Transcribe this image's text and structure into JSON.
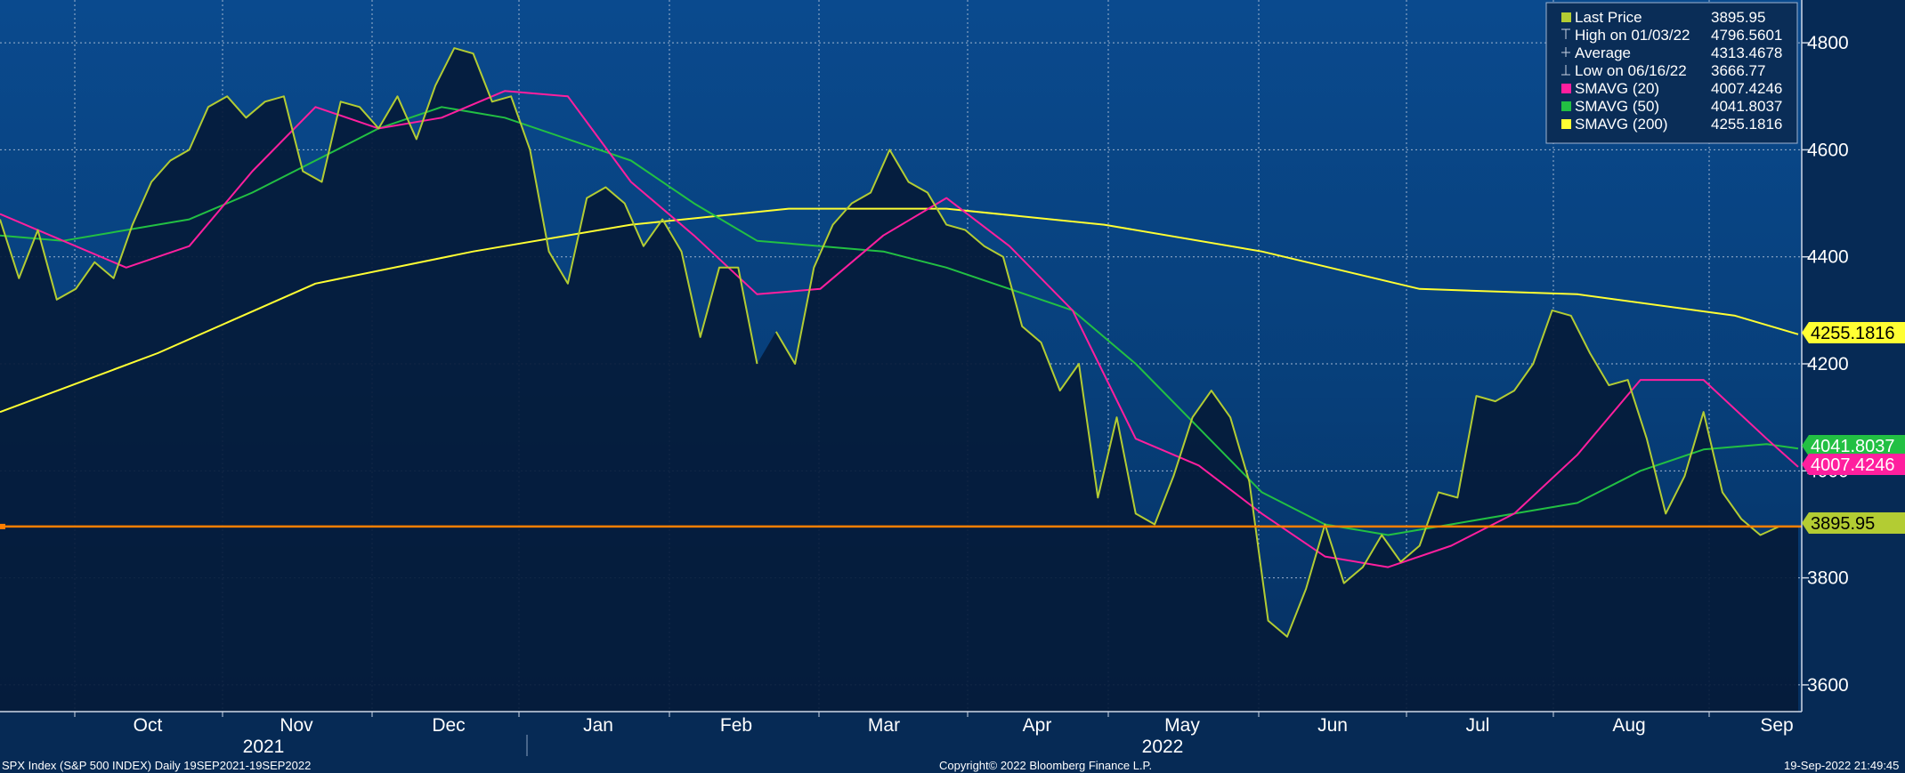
{
  "chart_data": {
    "type": "line",
    "title": "",
    "xlabel": "",
    "ylabel": "",
    "ylim": [
      3550,
      4880
    ],
    "x_months": [
      "Oct",
      "Nov",
      "Dec",
      "Jan",
      "Feb",
      "Mar",
      "Apr",
      "May",
      "Jun",
      "Jul",
      "Aug",
      "Sep"
    ],
    "x_years": [
      "2021",
      "2022"
    ],
    "y_ticks": [
      "4800",
      "4600",
      "4400",
      "4200",
      "4000",
      "3800",
      "3600"
    ],
    "y_tick_values": [
      4800,
      4600,
      4400,
      4200,
      4000,
      3800,
      3600
    ],
    "grid": true,
    "legend_position": "top-right",
    "reference_line": {
      "value": 3895.95,
      "color": "#ff7f00"
    },
    "legend": [
      {
        "label": "Last Price",
        "value": "3895.95",
        "color": "#b3cc33",
        "marker": "square"
      },
      {
        "label": "High on 01/03/22",
        "value": "4796.5601",
        "color": "#ffffff",
        "marker": "high"
      },
      {
        "label": "Average",
        "value": "4313.4678",
        "color": "#ffffff",
        "marker": "avg"
      },
      {
        "label": "Low on 06/16/22",
        "value": "3666.77",
        "color": "#ffffff",
        "marker": "low"
      },
      {
        "label": "SMAVG (20)",
        "value": "4007.4246",
        "color": "#ff1f9e",
        "marker": "square"
      },
      {
        "label": "SMAVG (50)",
        "value": "4041.8037",
        "color": "#22c043",
        "marker": "square"
      },
      {
        "label": "SMAVG (200)",
        "value": "4255.1816",
        "color": "#ffff33",
        "marker": "square"
      }
    ],
    "right_tags": [
      {
        "label": "4255.1816",
        "value": 4255.18,
        "bg": "#ffff33",
        "fg": "#000000"
      },
      {
        "label": "4041.8037",
        "value": 4041.8,
        "bg": "#22c043",
        "fg": "#ffffff"
      },
      {
        "label": "4007.4246",
        "value": 4007.42,
        "bg": "#ff1f9e",
        "fg": "#ffffff"
      },
      {
        "label": "3895.95",
        "value": 3895.95,
        "bg": "#b3cc33",
        "fg": "#000000"
      }
    ],
    "series": [
      {
        "name": "Last Price",
        "color": "#b3cc33",
        "fill": true,
        "x": [
          0,
          6,
          12,
          18,
          24,
          30,
          36,
          42,
          48,
          54,
          60,
          66,
          72,
          78,
          84,
          90,
          96,
          102,
          108,
          114,
          120,
          126,
          132,
          138,
          144,
          150,
          156,
          162,
          168,
          174,
          180,
          186,
          192,
          198,
          204,
          210,
          216,
          222,
          228,
          234,
          240
        ],
        "y": [
          4470,
          4360,
          4450,
          4320,
          4340,
          4390,
          4360,
          4460,
          4540,
          4580,
          4600,
          4680,
          4700,
          4660,
          4690,
          4700,
          4560,
          4540,
          4690,
          4680,
          4640,
          4700,
          4620,
          4720,
          4790,
          4780,
          4690,
          4700,
          4600,
          4410,
          4350,
          4510,
          4530,
          4500,
          4420,
          4470,
          4410,
          4250,
          4380,
          4380,
          4200
        ]
      },
      {
        "name": "Last Price (cont.)",
        "color": "#b3cc33",
        "fill": true,
        "x": [
          246,
          252,
          258,
          264,
          270,
          276,
          282,
          288,
          294,
          300,
          306,
          312,
          318,
          324,
          330,
          336,
          342,
          348,
          354,
          360,
          366,
          372,
          378,
          384,
          390,
          396,
          402,
          408,
          414,
          420,
          426,
          432,
          438,
          444,
          450,
          456,
          462,
          468,
          474,
          480,
          486,
          492,
          498,
          504,
          510,
          516,
          522,
          528,
          534,
          540,
          546,
          552,
          558,
          564,
          570
        ],
        "y": [
          4260,
          4200,
          4380,
          4460,
          4500,
          4520,
          4600,
          4540,
          4520,
          4460,
          4450,
          4420,
          4400,
          4270,
          4240,
          4150,
          4200,
          3950,
          4100,
          3920,
          3900,
          3990,
          4100,
          4150,
          4100,
          3980,
          3720,
          3690,
          3780,
          3900,
          3790,
          3820,
          3880,
          3830,
          3860,
          3960,
          3950,
          4140,
          4130,
          4150,
          4200,
          4300,
          4290,
          4220,
          4160,
          4170,
          4060,
          3920,
          3990,
          4110,
          3960,
          3910,
          3880,
          3895.95,
          3895.95
        ]
      },
      {
        "name": "SMAVG (20)",
        "color": "#ff1f9e",
        "fill": false,
        "x": [
          0,
          20,
          40,
          60,
          80,
          100,
          120,
          140,
          160,
          180,
          200,
          220,
          240,
          260,
          280,
          300,
          320,
          340,
          360,
          380,
          400,
          420,
          440,
          460,
          480,
          500,
          520,
          540,
          560,
          570
        ],
        "y": [
          4480,
          4430,
          4380,
          4420,
          4560,
          4680,
          4640,
          4660,
          4710,
          4700,
          4540,
          4440,
          4330,
          4340,
          4440,
          4510,
          4420,
          4300,
          4060,
          4010,
          3920,
          3840,
          3820,
          3860,
          3920,
          4030,
          4170,
          4170,
          4060,
          4007.42
        ]
      },
      {
        "name": "SMAVG (50)",
        "color": "#22c043",
        "fill": false,
        "x": [
          0,
          20,
          40,
          60,
          80,
          100,
          120,
          140,
          160,
          180,
          200,
          220,
          240,
          260,
          280,
          300,
          320,
          340,
          360,
          380,
          400,
          420,
          440,
          460,
          480,
          500,
          520,
          540,
          560,
          570
        ],
        "y": [
          4440,
          4430,
          4450,
          4470,
          4520,
          4580,
          4640,
          4680,
          4660,
          4620,
          4580,
          4500,
          4430,
          4420,
          4410,
          4380,
          4340,
          4300,
          4200,
          4080,
          3960,
          3900,
          3880,
          3900,
          3920,
          3940,
          4000,
          4040,
          4050,
          4041.8
        ]
      },
      {
        "name": "SMAVG (200)",
        "color": "#ffff33",
        "fill": false,
        "x": [
          0,
          50,
          100,
          150,
          200,
          250,
          300,
          350,
          400,
          450,
          500,
          550,
          570
        ],
        "y": [
          4110,
          4220,
          4350,
          4410,
          4460,
          4490,
          4490,
          4460,
          4410,
          4340,
          4330,
          4290,
          4255.18
        ]
      }
    ]
  },
  "footer": {
    "left": "SPX Index (S&P 500 INDEX)  Daily 19SEP2021-19SEP2022",
    "center": "Copyright© 2022 Bloomberg Finance L.P.",
    "right": "19-Sep-2022 21:49:45"
  }
}
